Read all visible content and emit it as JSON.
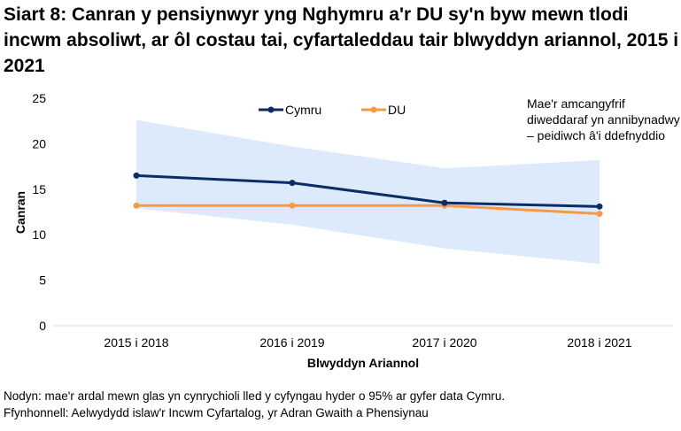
{
  "chart_data": {
    "type": "line",
    "title": "Siart 8: Canran y pensiynwyr yng Nghymru a'r DU sy'n byw mewn tlodi incwm absoliwt, ar ôl costau tai, cyfartaleddau tair blwyddyn ariannol, 2015 i 2021",
    "xlabel": "Blwyddyn Ariannol",
    "ylabel": "Canran",
    "ylim": [
      0,
      25
    ],
    "yticks": [
      "0",
      "5",
      "10",
      "15",
      "20",
      "25"
    ],
    "categories": [
      "2015 i 2018",
      "2016 i 2019",
      "2017 i 2020",
      "2018 i 2021"
    ],
    "series": [
      {
        "name": "Cymru",
        "values": [
          16.5,
          15.7,
          13.5,
          13.1
        ],
        "color": "#0B2C67"
      },
      {
        "name": "DU",
        "values": [
          13.2,
          13.2,
          13.2,
          12.3
        ],
        "color": "#F79A45"
      }
    ],
    "confidence_band": {
      "upper": [
        22.6,
        19.7,
        17.3,
        18.2
      ],
      "lower": [
        12.9,
        11.1,
        8.5,
        6.8
      ],
      "color": "#DCEAFB"
    },
    "grid": false,
    "legend": "top-center",
    "annotation": "Mae'r amcangyfrif diweddaraf yn annibynadwy – peidiwch â'i ddefnyddio"
  },
  "notes": {
    "note": "Nodyn: mae'r ardal mewn glas yn cynrychioli lled y cyfyngau hyder o 95% ar gyfer data Cymru.",
    "source": "Ffynhonnell: Aelwydydd islaw'r Incwm Cyfartalog, yr Adran Gwaith a Phensiynau"
  }
}
